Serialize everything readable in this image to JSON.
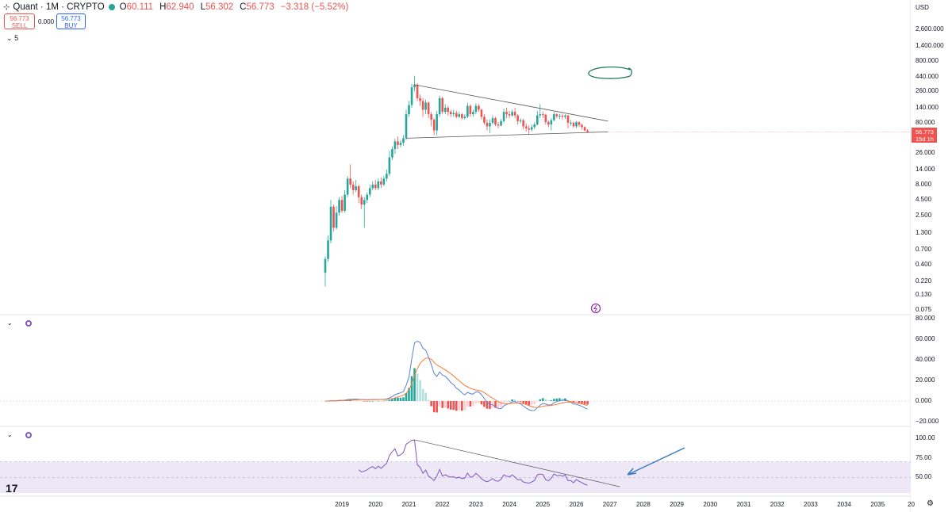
{
  "header": {
    "symbol": "Quant · 1M · CRYPTO",
    "ohlc": [
      {
        "k": "O",
        "v": "60.111"
      },
      {
        "k": "H",
        "v": "62.940"
      },
      {
        "k": "L",
        "v": "56.302"
      },
      {
        "k": "C",
        "v": "56.773"
      },
      {
        "k": "",
        "v": "−3.318 (−5.52%)"
      }
    ],
    "sell_price": "56.773",
    "sell_label": "SELL",
    "spread": "0.000",
    "buy_price": "56.773",
    "buy_label": "BUY",
    "indicator_count": "5",
    "currency": "USD"
  },
  "price_badge": {
    "price": "56.773",
    "countdown": "15d 1h"
  },
  "colors": {
    "up": "#26a69a",
    "down": "#ef5350",
    "macd": "#5b7fd6",
    "signal": "#f57c36",
    "rsi": "#7e57c2",
    "rsi_band": "#ede7f6"
  },
  "icons": [
    "chevron-down-icon",
    "indicator-icon",
    "lightning-icon",
    "tradingview-logo-icon",
    "gear-icon"
  ],
  "chart_data": [
    {
      "type": "candlestick",
      "scale": "log",
      "y_ticks": [
        "2,600.000",
        "1,400.000",
        "800.000",
        "440.000",
        "260.000",
        "140.000",
        "80.000",
        "26.000",
        "14.000",
        "8.000",
        "4.500",
        "2.500",
        "1.300",
        "0.700",
        "0.400",
        "0.220",
        "0.130",
        "0.075"
      ],
      "x_ticks": [
        "2019",
        "2020",
        "2021",
        "2022",
        "2023",
        "2024",
        "2025",
        "2026",
        "2027",
        "2028",
        "2029",
        "2030",
        "2031",
        "2032",
        "2033",
        "2034",
        "2035",
        "20"
      ],
      "candles": [
        {
          "x": "2018-07",
          "o": 0.3,
          "c": 0.5,
          "h": 0.55,
          "l": 0.18
        },
        {
          "x": "2018-08",
          "o": 0.5,
          "c": 1.0,
          "h": 1.2,
          "l": 0.45
        },
        {
          "x": "2018-09",
          "o": 1.0,
          "c": 3.5,
          "h": 4.5,
          "l": 0.9
        },
        {
          "x": "2018-10",
          "o": 3.5,
          "c": 1.6,
          "h": 3.8,
          "l": 1.4
        },
        {
          "x": "2018-11",
          "o": 1.6,
          "c": 2.8,
          "h": 3.6,
          "l": 1.5
        },
        {
          "x": "2018-12",
          "o": 2.8,
          "c": 4.5,
          "h": 5.0,
          "l": 2.5
        },
        {
          "x": "2019-01",
          "o": 4.5,
          "c": 3.0,
          "h": 5.2,
          "l": 2.8
        },
        {
          "x": "2019-02",
          "o": 3.0,
          "c": 5.5,
          "h": 6.5,
          "l": 2.8
        },
        {
          "x": "2019-03",
          "o": 5.5,
          "c": 10.0,
          "h": 11.0,
          "l": 5.0
        },
        {
          "x": "2019-04",
          "o": 10.0,
          "c": 8.0,
          "h": 17.0,
          "l": 7.0
        },
        {
          "x": "2019-05",
          "o": 8.0,
          "c": 6.5,
          "h": 9.0,
          "l": 5.5
        },
        {
          "x": "2019-06",
          "o": 6.5,
          "c": 7.5,
          "h": 9.5,
          "l": 6.0
        },
        {
          "x": "2019-07",
          "o": 7.5,
          "c": 5.0,
          "h": 8.0,
          "l": 4.0
        },
        {
          "x": "2019-08",
          "o": 5.0,
          "c": 3.8,
          "h": 5.5,
          "l": 3.2
        },
        {
          "x": "2019-09",
          "o": 3.8,
          "c": 4.5,
          "h": 5.0,
          "l": 1.6
        },
        {
          "x": "2019-10",
          "o": 4.5,
          "c": 5.5,
          "h": 6.0,
          "l": 4.0
        },
        {
          "x": "2019-11",
          "o": 5.5,
          "c": 7.0,
          "h": 8.0,
          "l": 5.0
        },
        {
          "x": "2019-12",
          "o": 7.0,
          "c": 8.0,
          "h": 9.0,
          "l": 6.5
        },
        {
          "x": "2020-01",
          "o": 8.0,
          "c": 7.0,
          "h": 9.5,
          "l": 6.5
        },
        {
          "x": "2020-02",
          "o": 7.0,
          "c": 9.0,
          "h": 10.0,
          "l": 6.5
        },
        {
          "x": "2020-03",
          "o": 9.0,
          "c": 8.0,
          "h": 10.5,
          "l": 7.0
        },
        {
          "x": "2020-04",
          "o": 8.0,
          "c": 10.0,
          "h": 11.0,
          "l": 7.5
        },
        {
          "x": "2020-05",
          "o": 10.0,
          "c": 12.0,
          "h": 14.0,
          "l": 9.0
        },
        {
          "x": "2020-06",
          "o": 12.0,
          "c": 22.0,
          "h": 28.0,
          "l": 11.0
        },
        {
          "x": "2020-07",
          "o": 22.0,
          "c": 30.0,
          "h": 33.0,
          "l": 20.0
        },
        {
          "x": "2020-08",
          "o": 30.0,
          "c": 40.0,
          "h": 44.0,
          "l": 25.0
        },
        {
          "x": "2020-09",
          "o": 40.0,
          "c": 35.0,
          "h": 48.0,
          "l": 30.0
        },
        {
          "x": "2020-10",
          "o": 35.0,
          "c": 38.0,
          "h": 42.0,
          "l": 32.0
        },
        {
          "x": "2020-11",
          "o": 38.0,
          "c": 45.0,
          "h": 50.0,
          "l": 34.0
        },
        {
          "x": "2020-12",
          "o": 45.0,
          "c": 110.0,
          "h": 130.0,
          "l": 42.0
        },
        {
          "x": "2021-01",
          "o": 110.0,
          "c": 155.0,
          "h": 180.0,
          "l": 100.0
        },
        {
          "x": "2021-02",
          "o": 155.0,
          "c": 300.0,
          "h": 340.0,
          "l": 140.0
        },
        {
          "x": "2021-03",
          "o": 300.0,
          "c": 330.0,
          "h": 460.0,
          "l": 260.0
        },
        {
          "x": "2021-04",
          "o": 330.0,
          "c": 200.0,
          "h": 350.0,
          "l": 180.0
        },
        {
          "x": "2021-05",
          "o": 200.0,
          "c": 180.0,
          "h": 230.0,
          "l": 150.0
        },
        {
          "x": "2021-06",
          "o": 180.0,
          "c": 130.0,
          "h": 200.0,
          "l": 100.0
        },
        {
          "x": "2021-07",
          "o": 130.0,
          "c": 170.0,
          "h": 190.0,
          "l": 110.0
        },
        {
          "x": "2021-08",
          "o": 170.0,
          "c": 110.0,
          "h": 175.0,
          "l": 95.0
        },
        {
          "x": "2021-09",
          "o": 110.0,
          "c": 90.0,
          "h": 120.0,
          "l": 70.0
        },
        {
          "x": "2021-10",
          "o": 90.0,
          "c": 60.0,
          "h": 95.0,
          "l": 50.0
        },
        {
          "x": "2021-11",
          "o": 60.0,
          "c": 110.0,
          "h": 125.0,
          "l": 50.0
        },
        {
          "x": "2021-12",
          "o": 110.0,
          "c": 200.0,
          "h": 220.0,
          "l": 100.0
        },
        {
          "x": "2022-01",
          "o": 200.0,
          "c": 120.0,
          "h": 210.0,
          "l": 110.0
        },
        {
          "x": "2022-02",
          "o": 120.0,
          "c": 140.0,
          "h": 160.0,
          "l": 110.0
        },
        {
          "x": "2022-03",
          "o": 140.0,
          "c": 120.0,
          "h": 150.0,
          "l": 105.0
        },
        {
          "x": "2022-04",
          "o": 120.0,
          "c": 110.0,
          "h": 130.0,
          "l": 100.0
        },
        {
          "x": "2022-05",
          "o": 110.0,
          "c": 115.0,
          "h": 130.0,
          "l": 100.0
        },
        {
          "x": "2022-06",
          "o": 115.0,
          "c": 100.0,
          "h": 125.0,
          "l": 95.0
        },
        {
          "x": "2022-07",
          "o": 100.0,
          "c": 110.0,
          "h": 120.0,
          "l": 95.0
        },
        {
          "x": "2022-08",
          "o": 110.0,
          "c": 95.0,
          "h": 115.0,
          "l": 90.0
        },
        {
          "x": "2022-09",
          "o": 95.0,
          "c": 100.0,
          "h": 110.0,
          "l": 90.0
        },
        {
          "x": "2022-10",
          "o": 100.0,
          "c": 150.0,
          "h": 170.0,
          "l": 95.0
        },
        {
          "x": "2022-11",
          "o": 150.0,
          "c": 110.0,
          "h": 160.0,
          "l": 100.0
        },
        {
          "x": "2022-12",
          "o": 110.0,
          "c": 120.0,
          "h": 130.0,
          "l": 100.0
        },
        {
          "x": "2023-01",
          "o": 120.0,
          "c": 150.0,
          "h": 165.0,
          "l": 110.0
        },
        {
          "x": "2023-02",
          "o": 150.0,
          "c": 130.0,
          "h": 160.0,
          "l": 120.0
        },
        {
          "x": "2023-03",
          "o": 130.0,
          "c": 100.0,
          "h": 135.0,
          "l": 90.0
        },
        {
          "x": "2023-04",
          "o": 100.0,
          "c": 80.0,
          "h": 110.0,
          "l": 75.0
        },
        {
          "x": "2023-05",
          "o": 80.0,
          "c": 70.0,
          "h": 90.0,
          "l": 60.0
        },
        {
          "x": "2023-06",
          "o": 70.0,
          "c": 80.0,
          "h": 90.0,
          "l": 55.0
        },
        {
          "x": "2023-07",
          "o": 80.0,
          "c": 95.0,
          "h": 105.0,
          "l": 75.0
        },
        {
          "x": "2023-08",
          "o": 95.0,
          "c": 75.0,
          "h": 100.0,
          "l": 70.0
        },
        {
          "x": "2023-09",
          "o": 75.0,
          "c": 72.0,
          "h": 82.0,
          "l": 65.0
        },
        {
          "x": "2023-10",
          "o": 72.0,
          "c": 85.0,
          "h": 92.0,
          "l": 70.0
        },
        {
          "x": "2023-11",
          "o": 85.0,
          "c": 120.0,
          "h": 135.0,
          "l": 80.0
        },
        {
          "x": "2023-12",
          "o": 120.0,
          "c": 110.0,
          "h": 140.0,
          "l": 95.0
        },
        {
          "x": "2024-01",
          "o": 110.0,
          "c": 105.0,
          "h": 125.0,
          "l": 95.0
        },
        {
          "x": "2024-02",
          "o": 105.0,
          "c": 120.0,
          "h": 130.0,
          "l": 100.0
        },
        {
          "x": "2024-03",
          "o": 120.0,
          "c": 105.0,
          "h": 140.0,
          "l": 95.0
        },
        {
          "x": "2024-04",
          "o": 105.0,
          "c": 85.0,
          "h": 110.0,
          "l": 75.0
        },
        {
          "x": "2024-05",
          "o": 85.0,
          "c": 88.0,
          "h": 95.0,
          "l": 78.0
        },
        {
          "x": "2024-06",
          "o": 88.0,
          "c": 70.0,
          "h": 92.0,
          "l": 62.0
        },
        {
          "x": "2024-07",
          "o": 70.0,
          "c": 65.0,
          "h": 78.0,
          "l": 58.0
        },
        {
          "x": "2024-08",
          "o": 65.0,
          "c": 62.0,
          "h": 72.0,
          "l": 52.0
        },
        {
          "x": "2024-09",
          "o": 62.0,
          "c": 68.0,
          "h": 75.0,
          "l": 58.0
        },
        {
          "x": "2024-10",
          "o": 68.0,
          "c": 75.0,
          "h": 82.0,
          "l": 63.0
        },
        {
          "x": "2024-11",
          "o": 75.0,
          "c": 105.0,
          "h": 125.0,
          "l": 72.0
        },
        {
          "x": "2024-12",
          "o": 105.0,
          "c": 110.0,
          "h": 160.0,
          "l": 95.0
        },
        {
          "x": "2025-01",
          "o": 110.0,
          "c": 108.0,
          "h": 122.0,
          "l": 95.0
        },
        {
          "x": "2025-02",
          "o": 108.0,
          "c": 82.0,
          "h": 112.0,
          "l": 75.0
        },
        {
          "x": "2025-03",
          "o": 82.0,
          "c": 75.0,
          "h": 88.0,
          "l": 68.0
        },
        {
          "x": "2025-04",
          "o": 75.0,
          "c": 88.0,
          "h": 95.0,
          "l": 60.0
        },
        {
          "x": "2025-05",
          "o": 88.0,
          "c": 110.0,
          "h": 120.0,
          "l": 85.0
        },
        {
          "x": "2025-06",
          "o": 110.0,
          "c": 102.0,
          "h": 115.0,
          "l": 95.0
        },
        {
          "x": "2025-07",
          "o": 102.0,
          "c": 104.0,
          "h": 112.0,
          "l": 92.0
        },
        {
          "x": "2025-08",
          "o": 104.0,
          "c": 100.0,
          "h": 112.0,
          "l": 90.0
        },
        {
          "x": "2025-09",
          "o": 100.0,
          "c": 105.0,
          "h": 110.0,
          "l": 92.0
        },
        {
          "x": "2025-10",
          "o": 105.0,
          "c": 80.0,
          "h": 108.0,
          "l": 65.0
        },
        {
          "x": "2025-11",
          "o": 80.0,
          "c": 80.0,
          "h": 88.0,
          "l": 72.0
        },
        {
          "x": "2025-12",
          "o": 80.0,
          "c": 70.0,
          "h": 84.0,
          "l": 66.0
        },
        {
          "x": "2026-01",
          "o": 70.0,
          "c": 82.0,
          "h": 86.0,
          "l": 65.0
        },
        {
          "x": "2026-02",
          "o": 82.0,
          "c": 74.0,
          "h": 84.0,
          "l": 68.0
        },
        {
          "x": "2026-03",
          "o": 74.0,
          "c": 68.0,
          "h": 78.0,
          "l": 62.0
        },
        {
          "x": "2026-04",
          "o": 68.0,
          "c": 60.1,
          "h": 70.0,
          "l": 58.0
        },
        {
          "x": "2026-05",
          "o": 60.111,
          "c": 56.773,
          "h": 62.94,
          "l": 56.302
        }
      ]
    },
    {
      "type": "bar",
      "y_ticks": [
        "80.000",
        "60.000",
        "40.000",
        "20.000",
        "0.000",
        "−20.000"
      ],
      "ylim": [
        -20,
        80
      ]
    },
    {
      "type": "line",
      "y_ticks": [
        "100.00",
        "75.00",
        "50.00"
      ],
      "ylim": [
        30,
        100
      ]
    }
  ]
}
